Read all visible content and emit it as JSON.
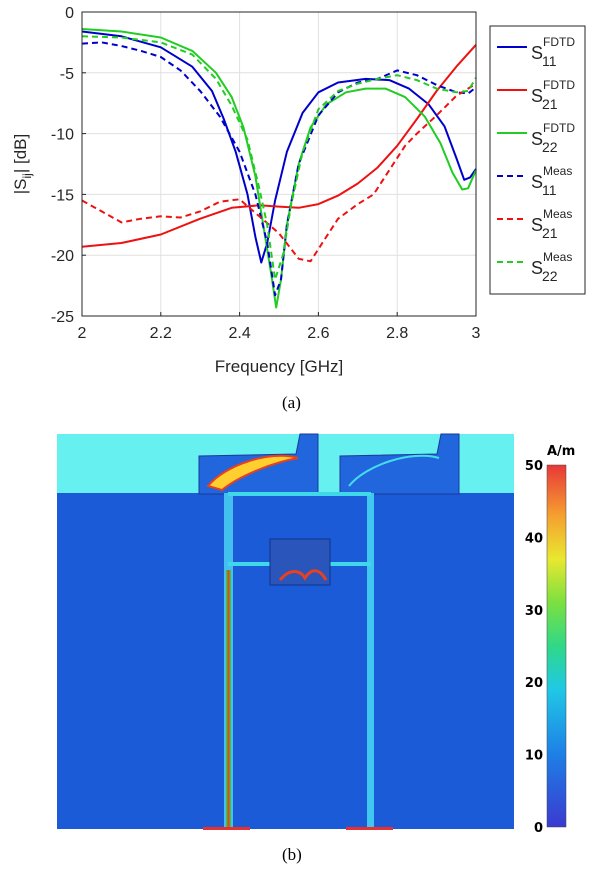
{
  "panel_a": {
    "caption": "(a)"
  },
  "panel_b": {
    "caption": "(b)",
    "colorbar": {
      "unit": "A/m",
      "ticks": [
        "50",
        "40",
        "30",
        "20",
        "10",
        "0"
      ],
      "range": [
        0,
        50
      ]
    }
  },
  "chart_data": {
    "type": "line",
    "xlabel": "Frequency [GHz]",
    "ylabel": "|S",
    "ylabel_sub": "ij",
    "ylabel_end": "| [dB]",
    "xlim": [
      2,
      3
    ],
    "ylim": [
      -25,
      0
    ],
    "xticks": [
      2,
      2.2,
      2.4,
      2.6,
      2.8,
      3
    ],
    "xtick_labels": [
      "2",
      "2.2",
      "2.4",
      "2.6",
      "2.8",
      "3"
    ],
    "yticks": [
      0,
      -5,
      -10,
      -15,
      -20,
      -25
    ],
    "ytick_labels": [
      "0",
      "-5",
      "-10",
      "-15",
      "-20",
      "-25"
    ],
    "grid": true,
    "legend_position": "right",
    "series": [
      {
        "name": "S11 FDTD",
        "sup": "FDTD",
        "sub": "11",
        "color": "#0000cc",
        "dash": "solid",
        "points": [
          [
            2.0,
            -1.6
          ],
          [
            2.1,
            -2.0
          ],
          [
            2.2,
            -2.9
          ],
          [
            2.28,
            -4.5
          ],
          [
            2.33,
            -6.5
          ],
          [
            2.36,
            -8.8
          ],
          [
            2.39,
            -11.5
          ],
          [
            2.42,
            -15.0
          ],
          [
            2.44,
            -18.5
          ],
          [
            2.455,
            -20.6
          ],
          [
            2.47,
            -19.0
          ],
          [
            2.49,
            -15.5
          ],
          [
            2.52,
            -11.5
          ],
          [
            2.56,
            -8.3
          ],
          [
            2.6,
            -6.6
          ],
          [
            2.65,
            -5.8
          ],
          [
            2.72,
            -5.5
          ],
          [
            2.78,
            -5.6
          ],
          [
            2.83,
            -6.3
          ],
          [
            2.88,
            -7.6
          ],
          [
            2.92,
            -9.4
          ],
          [
            2.95,
            -12.0
          ],
          [
            2.97,
            -13.8
          ],
          [
            2.985,
            -13.6
          ],
          [
            3.0,
            -12.9
          ]
        ]
      },
      {
        "name": "S21 FDTD",
        "sup": "FDTD",
        "sub": "21",
        "color": "#ee1111",
        "dash": "solid",
        "points": [
          [
            2.0,
            -19.3
          ],
          [
            2.1,
            -19.0
          ],
          [
            2.2,
            -18.3
          ],
          [
            2.3,
            -17.0
          ],
          [
            2.38,
            -16.1
          ],
          [
            2.45,
            -15.9
          ],
          [
            2.5,
            -16.0
          ],
          [
            2.55,
            -16.1
          ],
          [
            2.6,
            -15.8
          ],
          [
            2.65,
            -15.1
          ],
          [
            2.7,
            -14.1
          ],
          [
            2.75,
            -12.8
          ],
          [
            2.8,
            -11.0
          ],
          [
            2.85,
            -8.8
          ],
          [
            2.9,
            -6.5
          ],
          [
            2.95,
            -4.5
          ],
          [
            3.0,
            -2.7
          ]
        ]
      },
      {
        "name": "S22 FDTD",
        "sup": "FDTD",
        "sub": "22",
        "color": "#22cc22",
        "dash": "solid",
        "points": [
          [
            2.0,
            -1.4
          ],
          [
            2.1,
            -1.6
          ],
          [
            2.2,
            -2.1
          ],
          [
            2.28,
            -3.2
          ],
          [
            2.34,
            -5.0
          ],
          [
            2.38,
            -7.0
          ],
          [
            2.41,
            -9.5
          ],
          [
            2.44,
            -13.5
          ],
          [
            2.46,
            -17.5
          ],
          [
            2.48,
            -21.5
          ],
          [
            2.493,
            -24.3
          ],
          [
            2.505,
            -22.0
          ],
          [
            2.52,
            -17.5
          ],
          [
            2.55,
            -12.5
          ],
          [
            2.58,
            -9.5
          ],
          [
            2.62,
            -7.6
          ],
          [
            2.67,
            -6.6
          ],
          [
            2.72,
            -6.3
          ],
          [
            2.77,
            -6.3
          ],
          [
            2.82,
            -7.0
          ],
          [
            2.87,
            -8.6
          ],
          [
            2.91,
            -10.8
          ],
          [
            2.94,
            -13.2
          ],
          [
            2.965,
            -14.6
          ],
          [
            2.98,
            -14.5
          ],
          [
            3.0,
            -13.0
          ]
        ]
      },
      {
        "name": "S11 Meas",
        "sup": "Meas",
        "sub": "11",
        "color": "#0000cc",
        "dash": "dashed",
        "points": [
          [
            2.0,
            -2.6
          ],
          [
            2.05,
            -2.5
          ],
          [
            2.1,
            -2.8
          ],
          [
            2.15,
            -3.2
          ],
          [
            2.2,
            -3.7
          ],
          [
            2.25,
            -4.8
          ],
          [
            2.3,
            -6.5
          ],
          [
            2.35,
            -8.6
          ],
          [
            2.4,
            -11.5
          ],
          [
            2.44,
            -15.0
          ],
          [
            2.47,
            -19.0
          ],
          [
            2.49,
            -23.3
          ],
          [
            2.505,
            -22.0
          ],
          [
            2.52,
            -17.5
          ],
          [
            2.55,
            -12.5
          ],
          [
            2.6,
            -8.5
          ],
          [
            2.65,
            -6.6
          ],
          [
            2.7,
            -5.8
          ],
          [
            2.75,
            -5.5
          ],
          [
            2.8,
            -4.8
          ],
          [
            2.85,
            -5.2
          ],
          [
            2.9,
            -6.0
          ],
          [
            2.95,
            -6.6
          ],
          [
            2.98,
            -6.7
          ],
          [
            3.0,
            -6.2
          ]
        ]
      },
      {
        "name": "S21 Meas",
        "sup": "Meas",
        "sub": "21",
        "color": "#ee1111",
        "dash": "dashed",
        "points": [
          [
            2.0,
            -15.5
          ],
          [
            2.05,
            -16.4
          ],
          [
            2.1,
            -17.3
          ],
          [
            2.15,
            -17.0
          ],
          [
            2.2,
            -16.8
          ],
          [
            2.25,
            -16.9
          ],
          [
            2.3,
            -16.4
          ],
          [
            2.35,
            -15.6
          ],
          [
            2.4,
            -15.4
          ],
          [
            2.45,
            -16.8
          ],
          [
            2.5,
            -18.2
          ],
          [
            2.55,
            -20.3
          ],
          [
            2.58,
            -20.5
          ],
          [
            2.61,
            -19.0
          ],
          [
            2.65,
            -17.0
          ],
          [
            2.7,
            -15.8
          ],
          [
            2.74,
            -15.0
          ],
          [
            2.78,
            -13.0
          ],
          [
            2.82,
            -11.0
          ],
          [
            2.85,
            -10.0
          ],
          [
            2.9,
            -8.5
          ],
          [
            2.95,
            -6.9
          ],
          [
            3.0,
            -5.9
          ]
        ]
      },
      {
        "name": "S22 Meas",
        "sup": "Meas",
        "sub": "22",
        "color": "#22cc22",
        "dash": "dashed",
        "points": [
          [
            2.0,
            -2.0
          ],
          [
            2.1,
            -2.1
          ],
          [
            2.2,
            -2.5
          ],
          [
            2.28,
            -3.5
          ],
          [
            2.34,
            -5.5
          ],
          [
            2.38,
            -7.7
          ],
          [
            2.42,
            -10.5
          ],
          [
            2.45,
            -14.5
          ],
          [
            2.47,
            -17.5
          ],
          [
            2.49,
            -22.0
          ],
          [
            2.51,
            -20.0
          ],
          [
            2.53,
            -16.0
          ],
          [
            2.56,
            -11.5
          ],
          [
            2.6,
            -8.0
          ],
          [
            2.65,
            -6.5
          ],
          [
            2.7,
            -5.9
          ],
          [
            2.75,
            -5.5
          ],
          [
            2.8,
            -5.2
          ],
          [
            2.85,
            -5.6
          ],
          [
            2.9,
            -6.3
          ],
          [
            2.95,
            -6.6
          ],
          [
            2.98,
            -6.5
          ],
          [
            3.0,
            -5.4
          ]
        ]
      }
    ]
  }
}
